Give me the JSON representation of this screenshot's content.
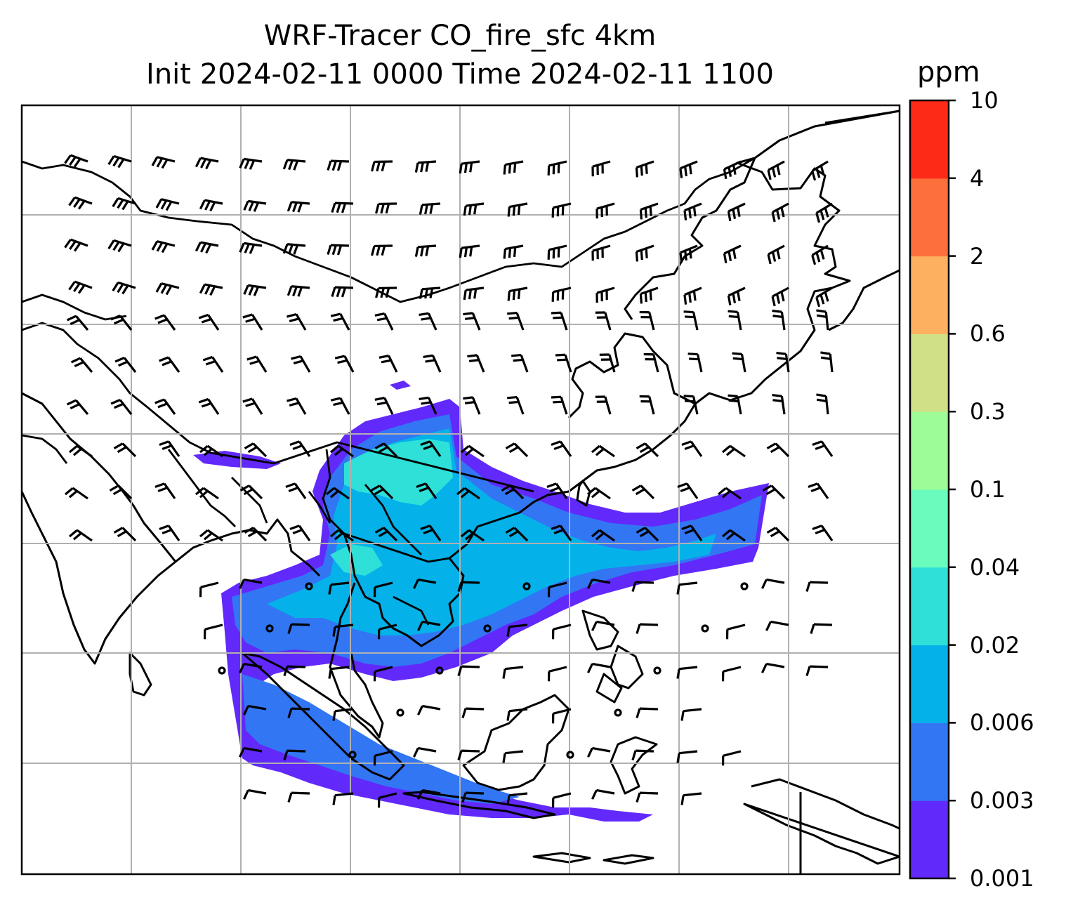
{
  "title": {
    "line1": "WRF-Tracer CO_fire_sfc 4km",
    "line2": "Init 2024-02-11 0000 Time 2024-02-11 1100"
  },
  "colorbar": {
    "label": "ppm",
    "ticks": [
      "0.001",
      "0.003",
      "0.006",
      "0.02",
      "0.04",
      "0.1",
      "0.3",
      "0.6",
      "2",
      "4",
      "10"
    ],
    "colors": [
      "#6229fb",
      "#3276f4",
      "#04b2e9",
      "#2ee0d8",
      "#6afcbd",
      "#9dfb98",
      "#cfe086",
      "#fdb060",
      "#fd6f3b",
      "#fd2a17"
    ]
  },
  "map": {
    "gridlines": true,
    "overlays": [
      "coastlines",
      "country-borders",
      "wind-barbs"
    ],
    "plume_colors": {
      "low": "#6229fb",
      "mid": "#3276f4",
      "high": "#04b2e9",
      "peak": "#2ee0d8"
    }
  }
}
